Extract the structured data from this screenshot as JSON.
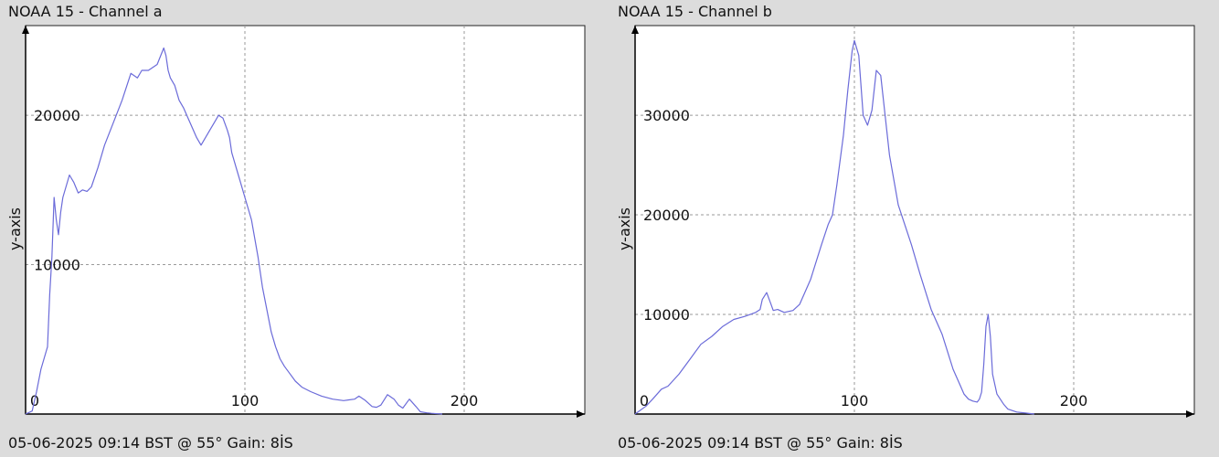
{
  "line_color": "#6b6bd9",
  "grid_color": "#9a9a9a",
  "plot_background": "#ffffff",
  "page_background": "#dcdcdc",
  "chart_data": [
    {
      "type": "line",
      "title": "NOAA 15 - Channel a",
      "footer": "05-06-2025 09:14 BST @ 55° Gain: 8İS",
      "xlabel": "",
      "ylabel": "y-axis",
      "xlim": [
        0,
        255
      ],
      "ylim": [
        0,
        26000
      ],
      "x_ticks": [
        0,
        100,
        200
      ],
      "y_ticks": [
        10000,
        20000
      ],
      "x_tick_labels": [
        "0",
        "100",
        "200"
      ],
      "y_tick_labels": [
        "10000",
        "20000"
      ],
      "grid": true,
      "series": [
        {
          "x": [
            0,
            3,
            5,
            7,
            10,
            11,
            12,
            13,
            14,
            15,
            16,
            17,
            20,
            22,
            24,
            26,
            28,
            30,
            33,
            36,
            40,
            44,
            48,
            51,
            53,
            56,
            60,
            63,
            64,
            65,
            66,
            68,
            70,
            72,
            75,
            78,
            80,
            84,
            86,
            88,
            90,
            92,
            93,
            94,
            96,
            98,
            100,
            103,
            106,
            108,
            110,
            112,
            114,
            116,
            118,
            120,
            123,
            126,
            130,
            135,
            140,
            145,
            150,
            152,
            155,
            158,
            160,
            162,
            165,
            168,
            170,
            172,
            175,
            178,
            180,
            183,
            185,
            188,
            190
          ],
          "y": [
            0,
            200,
            1500,
            3000,
            4500,
            8000,
            10500,
            14500,
            13000,
            12000,
            13500,
            14500,
            16000,
            15500,
            14800,
            15000,
            14900,
            15200,
            16500,
            18000,
            19500,
            21000,
            22800,
            22500,
            23000,
            23000,
            23400,
            24500,
            24000,
            23000,
            22500,
            22000,
            21000,
            20500,
            19500,
            18500,
            18000,
            19000,
            19500,
            20000,
            19800,
            19000,
            18500,
            17500,
            16500,
            15500,
            14500,
            13000,
            10500,
            8500,
            7000,
            5500,
            4500,
            3700,
            3200,
            2800,
            2200,
            1800,
            1500,
            1200,
            1000,
            900,
            1000,
            1200,
            900,
            500,
            450,
            600,
            1300,
            1000,
            600,
            400,
            1000,
            500,
            150,
            80,
            50,
            20,
            0
          ]
        }
      ]
    },
    {
      "type": "line",
      "title": "NOAA 15 - Channel b",
      "footer": "05-06-2025 09:14 BST @ 55° Gain: 8İS",
      "xlabel": "",
      "ylabel": "y-axis",
      "xlim": [
        0,
        255
      ],
      "ylim": [
        0,
        39000
      ],
      "x_ticks": [
        0,
        100,
        200
      ],
      "y_ticks": [
        10000,
        20000,
        30000
      ],
      "x_tick_labels": [
        "0",
        "100",
        "200"
      ],
      "y_tick_labels": [
        "10000",
        "20000",
        "30000"
      ],
      "grid": true,
      "series": [
        {
          "x": [
            0,
            5,
            8,
            12,
            15,
            20,
            25,
            30,
            35,
            40,
            45,
            50,
            55,
            57,
            58,
            60,
            62,
            63,
            65,
            68,
            72,
            75,
            80,
            85,
            88,
            90,
            92,
            95,
            97,
            99,
            100,
            102,
            104,
            106,
            108,
            110,
            112,
            114,
            116,
            118,
            120,
            123,
            126,
            130,
            135,
            140,
            145,
            148,
            150,
            152,
            154,
            156,
            157,
            158,
            159,
            160,
            161,
            162,
            163,
            165,
            168,
            170,
            174,
            178,
            182
          ],
          "y": [
            0,
            800,
            1500,
            2500,
            2800,
            4000,
            5500,
            7000,
            7800,
            8800,
            9500,
            9800,
            10200,
            10500,
            11500,
            12200,
            11000,
            10400,
            10500,
            10200,
            10400,
            11000,
            13500,
            17000,
            19000,
            20000,
            23000,
            28000,
            32500,
            36500,
            37500,
            36000,
            30000,
            29000,
            30500,
            34500,
            34000,
            30000,
            26000,
            23500,
            21000,
            19000,
            17000,
            14000,
            10500,
            8000,
            4500,
            3000,
            2000,
            1500,
            1300,
            1200,
            1500,
            2200,
            5000,
            8800,
            10000,
            7800,
            4000,
            2000,
            1000,
            500,
            200,
            100,
            0
          ]
        }
      ]
    }
  ]
}
